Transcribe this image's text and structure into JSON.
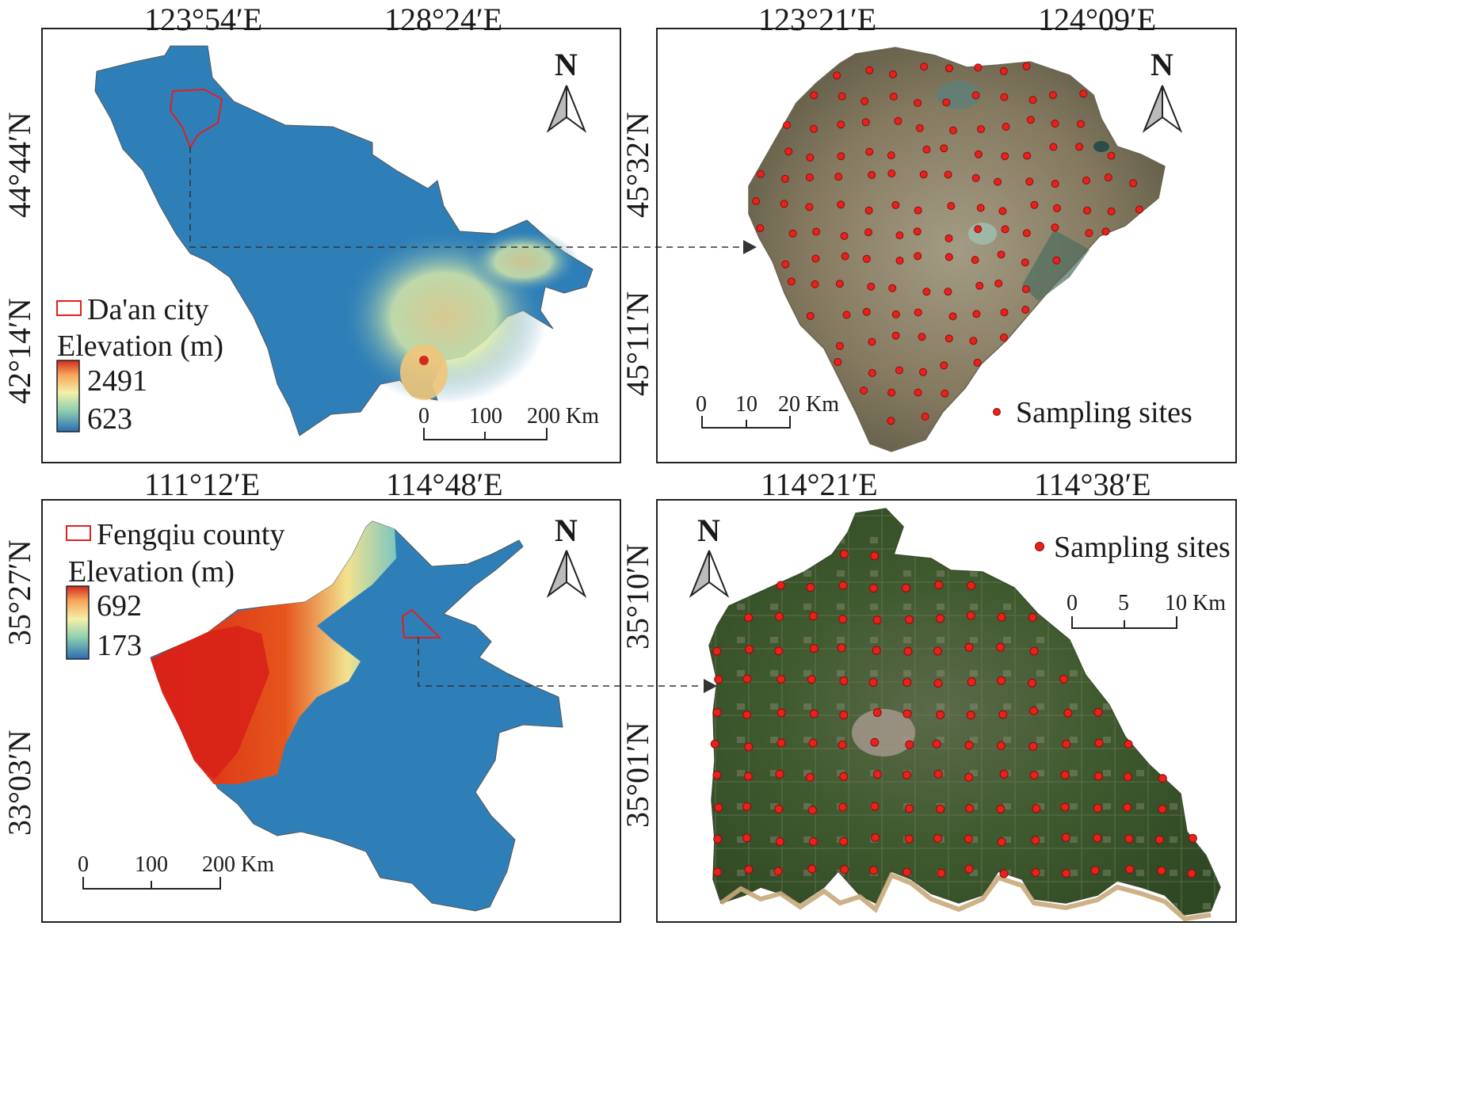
{
  "panels": {
    "top_left": {
      "x_ticks": [
        "123°54′E",
        "128°24′E"
      ],
      "y_ticks": [
        "44°44′N",
        "42°14′N"
      ],
      "legend": {
        "region_label": "Da'an city",
        "elevation_title": "Elevation (m)",
        "max": "2491",
        "min": "623"
      },
      "scale": {
        "labels": [
          "0",
          "100",
          "200 Km"
        ]
      },
      "north": "N"
    },
    "top_right": {
      "x_ticks": [
        "123°21′E",
        "124°09′E"
      ],
      "y_ticks": [
        "45°32′N",
        "45°11′N"
      ],
      "scale": {
        "labels": [
          "0",
          "10",
          "20 Km"
        ]
      },
      "sites_label": "Sampling sites",
      "north": "N"
    },
    "bottom_left": {
      "x_ticks": [
        "111°12′E",
        "114°48′E"
      ],
      "y_ticks": [
        "35°27′N",
        "33°03′N"
      ],
      "legend": {
        "region_label": "Fengqiu county",
        "elevation_title": "Elevation (m)",
        "max": "692",
        "min": "173"
      },
      "scale": {
        "labels": [
          "0",
          "100",
          "200 Km"
        ]
      },
      "north": "N"
    },
    "bottom_right": {
      "x_ticks": [
        "114°21′E",
        "114°38′E"
      ],
      "y_ticks": [
        "35°10′N",
        "35°01′N"
      ],
      "scale": {
        "labels": [
          "0",
          "5",
          "10 Km"
        ]
      },
      "sites_label": "Sampling sites",
      "north": "N"
    }
  },
  "colors": {
    "lowland": "#2e7fb8",
    "region_outline": "#e02020",
    "site": "#e8211c",
    "imagery_dry": "#8a8068",
    "imagery_green": "#3f5a2e"
  }
}
